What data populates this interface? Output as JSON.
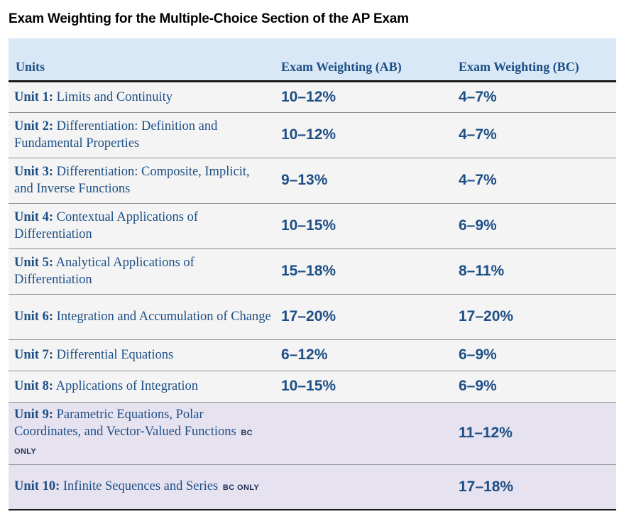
{
  "title": "Exam Weighting for the Multiple-Choice Section of the AP Exam",
  "headers": {
    "units": "Units",
    "ab": "Exam Weighting (AB)",
    "bc": "Exam Weighting (BC)"
  },
  "rows": [
    {
      "unit": "Unit 1:",
      "name": "Limits and Continuity",
      "bc_only": "",
      "ab": "10–12%",
      "bc": "4–7%"
    },
    {
      "unit": "Unit 2:",
      "name": "Differentiation: Definition and Fundamental Properties",
      "bc_only": "",
      "ab": "10–12%",
      "bc": "4–7%"
    },
    {
      "unit": "Unit 3:",
      "name": "Differentiation: Composite, Implicit, and Inverse Functions",
      "bc_only": "",
      "ab": "9–13%",
      "bc": "4–7%"
    },
    {
      "unit": "Unit 4:",
      "name": "Contextual Applications of Differentiation",
      "bc_only": "",
      "ab": "10–15%",
      "bc": "6–9%"
    },
    {
      "unit": "Unit 5:",
      "name": "Analytical Applications of Differentiation",
      "bc_only": "",
      "ab": "15–18%",
      "bc": "8–11%"
    },
    {
      "unit": "Unit 6:",
      "name": "Integration and Accumulation of Change",
      "bc_only": "",
      "ab": "17–20%",
      "bc": "17–20%"
    },
    {
      "unit": "Unit 7:",
      "name": "Differential Equations",
      "bc_only": "",
      "ab": "6–12%",
      "bc": "6–9%"
    },
    {
      "unit": "Unit 8:",
      "name": "Applications of Integration",
      "bc_only": "",
      "ab": "10–15%",
      "bc": "6–9%"
    },
    {
      "unit": "Unit 9:",
      "name": "Parametric Equations, Polar Coordinates, and Vector-Valued Functions",
      "bc_only": "BC ONLY",
      "ab": "",
      "bc": "11–12%"
    },
    {
      "unit": "Unit 10:",
      "name": "Infinite Sequences and Series",
      "bc_only": "BC ONLY",
      "ab": "",
      "bc": "17–18%"
    }
  ],
  "colors": {
    "header_bg": "#d9e8f6",
    "row_bg": "#f4f4f4",
    "bc_row_bg": "#e7e2f0",
    "text_blue": "#1d4f86"
  }
}
